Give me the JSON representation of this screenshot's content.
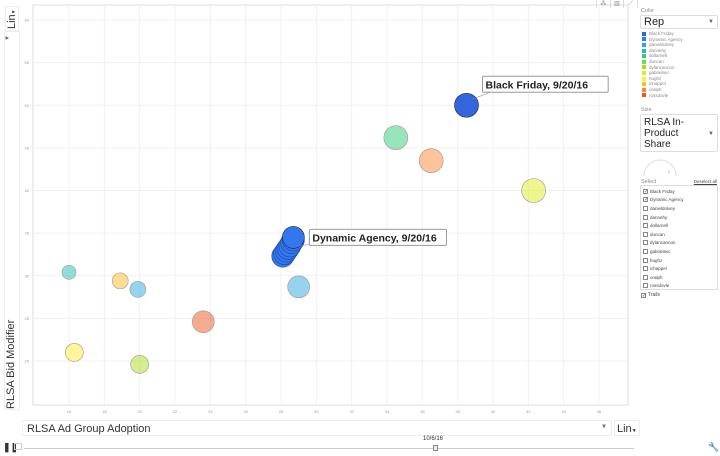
{
  "toolbar": {
    "tabs": [
      "bubble",
      "bar",
      "line"
    ]
  },
  "panel": {
    "color_label": "Color",
    "color_value": "Rep",
    "size_label": "Size",
    "size_value": "RLSA In-Product Share",
    "size_gauge_value": "0",
    "select_label": "Select",
    "deselect_all": "Deselect all",
    "trails_label": "Trails"
  },
  "reps": [
    {
      "name": "Black Friday",
      "color": "#3366dd",
      "checked": true
    },
    {
      "name": "Dynamic Agency",
      "color": "#3377ee",
      "checked": true
    },
    {
      "name": "danieldolvey",
      "color": "#2fa8e0",
      "checked": false
    },
    {
      "name": "dannehy",
      "color": "#20c0b0",
      "checked": false
    },
    {
      "name": "dollarnell",
      "color": "#33cc77",
      "checked": false
    },
    {
      "name": "duncan",
      "color": "#66dd55",
      "checked": false
    },
    {
      "name": "dylancannon",
      "color": "#aadd22",
      "checked": false
    },
    {
      "name": "gabrielavc",
      "color": "#ddee22",
      "checked": false
    },
    {
      "name": "hughz",
      "color": "#ffee33",
      "checked": false
    },
    {
      "name": "ichappel",
      "color": "#ffbb22",
      "checked": false
    },
    {
      "name": "oralph",
      "color": "#ff8833",
      "checked": false
    },
    {
      "name": "rossdovle",
      "color": "#ee5522",
      "checked": false
    }
  ],
  "axes": {
    "y_title": "RLSA Bid Modifier",
    "x_title": "RLSA Ad Group Adoption",
    "y_scale": "Lin",
    "x_scale": "Lin"
  },
  "playback": {
    "date": "10/6/16"
  },
  "chart_data": {
    "type": "scatter",
    "xlabel": "RLSA Ad Group Adoption",
    "ylabel": "RLSA Bid Modifier",
    "xlim": [
      16,
      46
    ],
    "ylim": [
      20,
      60
    ],
    "x_ticks": [
      "16",
      "18",
      "20",
      "22",
      "24",
      "26",
      "28",
      "30",
      "32",
      "34",
      "36",
      "38",
      "40",
      "42",
      "44",
      "46"
    ],
    "y_ticks": [
      "60",
      "55",
      "50",
      "45",
      "40",
      "35",
      "30",
      "25",
      "20"
    ],
    "grid": true,
    "points": [
      {
        "name": "Black Friday",
        "x": 38.5,
        "y": 50,
        "size": 12,
        "selected": true,
        "label": "Black Friday, 9/20/16"
      },
      {
        "name": "Dynamic Agency",
        "x": 28.7,
        "y": 34.5,
        "size": 11,
        "selected": true,
        "label": "Dynamic Agency, 9/20/16",
        "trail": [
          [
            28.1,
            32.3
          ],
          [
            28.2,
            32.6
          ],
          [
            28.3,
            32.9
          ],
          [
            28.4,
            33.2
          ],
          [
            28.5,
            33.5
          ],
          [
            28.6,
            33.9
          ],
          [
            28.7,
            34.2
          ]
        ]
      },
      {
        "name": "dollarnell",
        "x": 34.5,
        "y": 46.2,
        "size": 12
      },
      {
        "name": "oralph",
        "x": 36.5,
        "y": 43.5,
        "size": 12
      },
      {
        "name": "gabrielavc",
        "x": 42.3,
        "y": 40,
        "size": 12
      },
      {
        "name": "danieldolvey",
        "x": 29,
        "y": 28.7,
        "size": 11
      },
      {
        "name": "dannehy",
        "x": 16,
        "y": 30.4,
        "size": 7
      },
      {
        "name": "ichappel",
        "x": 18.9,
        "y": 29.4,
        "size": 8
      },
      {
        "name": "danieldolvey",
        "x": 19.9,
        "y": 28.4,
        "size": 8
      },
      {
        "name": "rossdovle",
        "x": 23.6,
        "y": 24.6,
        "size": 11
      },
      {
        "name": "hughz",
        "x": 16.3,
        "y": 21,
        "size": 9
      },
      {
        "name": "dylancannon",
        "x": 20,
        "y": 19.6,
        "size": 9
      }
    ]
  }
}
